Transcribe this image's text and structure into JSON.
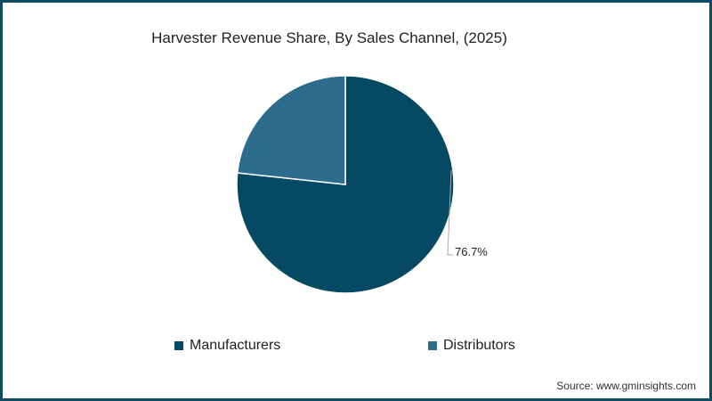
{
  "title": "Harvester Revenue Share, By Sales Channel, (2025)",
  "source": "Source: www.gminsights.com",
  "colors": {
    "border": "#0f4c64",
    "manufacturers": "#054a62",
    "distributors": "#2e6c8e"
  },
  "legend": [
    {
      "label": "Manufacturers",
      "color": "#054a62"
    },
    {
      "label": "Distributors",
      "color": "#2e6c8e"
    }
  ],
  "data_labels": {
    "manufacturers": "76.7%"
  },
  "chart_data": {
    "type": "pie",
    "title": "Harvester Revenue Share, By Sales Channel, (2025)",
    "categories": [
      "Manufacturers",
      "Distributors"
    ],
    "values": [
      76.7,
      23.3
    ],
    "unit": "%",
    "data_labels_shown": [
      "76.7%"
    ],
    "legend_position": "bottom",
    "start_angle": "12 o'clock, clockwise"
  }
}
